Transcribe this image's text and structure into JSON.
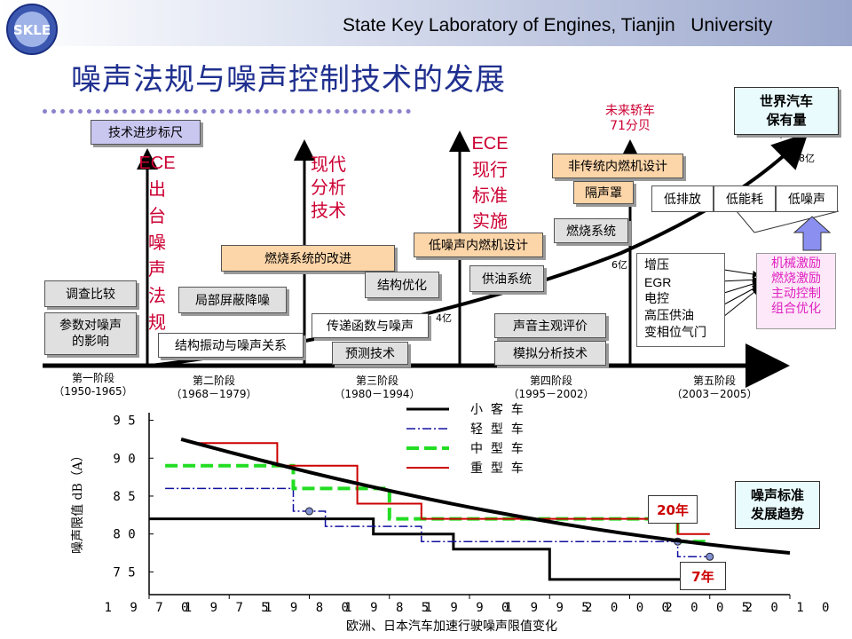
{
  "header": {
    "lab_name": "State Key Laboratory of Engines, Tianjin   University",
    "logo_text": "SKLE",
    "title": "噪声法规与噪声控制技术的发展"
  },
  "timeline": {
    "ruler_label": "技术进步标尺",
    "world_vehicles_label_1": "世界汽车",
    "world_vehicles_label_2": "保有量",
    "milestones": [
      {
        "text": "ECE出台噪声法规"
      },
      {
        "text": "现代分析技术"
      },
      {
        "text": "ECE现行标准实施"
      },
      {
        "text_1": "未来轿车",
        "text_2": "71分贝"
      }
    ],
    "vehicle_counts": [
      "4亿",
      "6亿",
      "8亿"
    ],
    "stages": [
      {
        "name": "第一阶段",
        "years": "（1950-1965）"
      },
      {
        "name": "第二阶段",
        "years": "（1968－1979）"
      },
      {
        "name": "第三阶段",
        "years": "（1980－1994）"
      },
      {
        "name": "第四阶段",
        "years": "（1995－2002）"
      },
      {
        "name": "第五阶段",
        "years": "（2003－2005）"
      }
    ],
    "boxes": {
      "survey": "调查比较",
      "param_1": "参数对噪声",
      "param_2": "的影响",
      "local_shield": "局部屏蔽降噪",
      "struct_vib": "结构振动与噪声关系",
      "combustion_improve": "燃烧系统的改进",
      "struct_opt": "结构优化",
      "transfer": "传递函数与噪声",
      "predict": "预测技术",
      "low_noise_engine": "低噪声内燃机设计",
      "fuel_supply": "供油系统",
      "subjective": "声音主观评价",
      "simulation": "模拟分析技术",
      "non_traditional": "非传统内燃机设计",
      "enclosure": "隔声罩",
      "combustion_sys": "燃烧系统",
      "low_emission": "低排放",
      "low_consumption": "低能耗",
      "low_noise": "低噪声"
    },
    "tech_list": [
      "增压",
      "EGR",
      "电控",
      "高压供油",
      "变相位气门"
    ],
    "excitation_list": [
      "机械激励",
      "燃烧激励",
      "主动控制",
      "组合优化"
    ]
  },
  "chart_data": {
    "type": "line",
    "title": "欧洲、日本汽车加速行驶噪声限值变化",
    "ylabel": "噪声限值 dB（A）",
    "xlim": [
      1970,
      2010
    ],
    "ylim": [
      72,
      96
    ],
    "xticks": [
      "1970",
      "1975",
      "1980",
      "1985",
      "1990",
      "1995",
      "2000",
      "2005",
      "2010"
    ],
    "yticks": [
      "95",
      "90",
      "85",
      "80",
      "75"
    ],
    "legend": [
      "小  客  车",
      "轻  型  车",
      "中  型  车",
      "重  型  车"
    ],
    "series": [
      {
        "name": "小客车",
        "color": "#000000",
        "points": [
          [
            1970,
            82
          ],
          [
            1984,
            82
          ],
          [
            1984,
            80
          ],
          [
            1989,
            80
          ],
          [
            1989,
            78
          ],
          [
            1995,
            78
          ],
          [
            1995,
            74
          ],
          [
            2005,
            74
          ]
        ]
      },
      {
        "name": "轻型车",
        "color": "#1010a0",
        "points": [
          [
            1971,
            86
          ],
          [
            1979,
            86
          ],
          [
            1979,
            83
          ],
          [
            1981,
            83
          ],
          [
            1981,
            81
          ],
          [
            1987,
            81
          ],
          [
            1987,
            79
          ],
          [
            2003,
            79
          ],
          [
            2003,
            77
          ],
          [
            2005,
            77
          ]
        ]
      },
      {
        "name": "中型车",
        "color": "#22dd22",
        "points": [
          [
            1971,
            89
          ],
          [
            1979,
            89
          ],
          [
            1979,
            86
          ],
          [
            1985,
            86
          ],
          [
            1985,
            82
          ],
          [
            2003,
            82
          ],
          [
            2003,
            79
          ],
          [
            2005,
            79
          ]
        ]
      },
      {
        "name": "重型车",
        "color": "#cc0000",
        "points": [
          [
            1973,
            92
          ],
          [
            1978,
            92
          ],
          [
            1978,
            89
          ],
          [
            1983,
            89
          ],
          [
            1983,
            84
          ],
          [
            1987,
            84
          ],
          [
            1987,
            82
          ],
          [
            2003,
            82
          ],
          [
            2003,
            80
          ],
          [
            2005,
            80
          ]
        ]
      }
    ],
    "trend_label_1": "噪声标准",
    "trend_label_2": "发展趋势",
    "annotations": [
      "20年",
      "7年"
    ]
  },
  "colors": {
    "title_blue": "#1f2f8f",
    "milestone_red": "#cc0033",
    "orange_box": "#fcd5a8",
    "gray_box": "#e0e0e0"
  }
}
